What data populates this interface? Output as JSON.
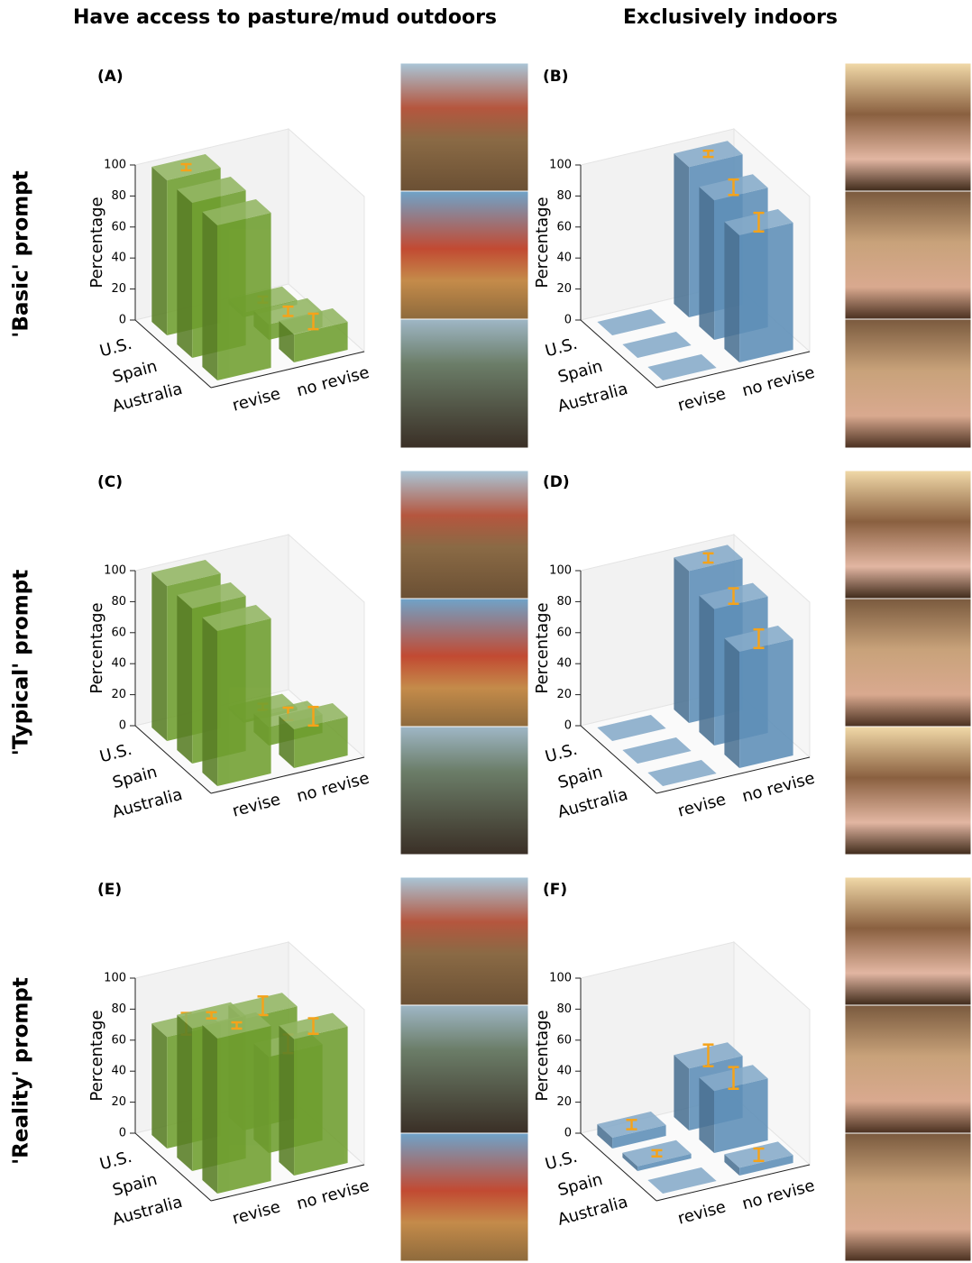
{
  "column_titles": [
    "Have access to pasture/mud outdoors",
    "Exclusively indoors"
  ],
  "row_titles": [
    "'Basic' prompt",
    "'Typical' prompt",
    "'Reality' prompt"
  ],
  "chart_data": [
    {
      "type": "bar3d",
      "title": "(A)",
      "ylabel": "Percentage",
      "color": "#6f9e2f",
      "ylim": [
        0,
        100
      ],
      "yticks": [
        0,
        20,
        40,
        60,
        80,
        100
      ],
      "categories": [
        "revise",
        "no revise"
      ],
      "series": [
        {
          "name": "U.S.",
          "values": [
            100,
            3
          ],
          "errors": [
            2,
            2
          ]
        },
        {
          "name": "Spain",
          "values": [
            100,
            10
          ],
          "errors": [
            null,
            3
          ]
        },
        {
          "name": "Australia",
          "values": [
            100,
            18
          ],
          "errors": [
            null,
            5
          ]
        }
      ]
    },
    {
      "type": "bar3d",
      "title": "(B)",
      "ylabel": "Percentage",
      "color": "#5e8fb8",
      "ylim": [
        0,
        100
      ],
      "yticks": [
        0,
        20,
        40,
        60,
        80,
        100
      ],
      "categories": [
        "revise",
        "no revise"
      ],
      "series": [
        {
          "name": "U.S.",
          "values": [
            0,
            97
          ],
          "errors": [
            null,
            2
          ]
        },
        {
          "name": "Spain",
          "values": [
            0,
            90
          ],
          "errors": [
            null,
            5
          ]
        },
        {
          "name": "Australia",
          "values": [
            0,
            82
          ],
          "errors": [
            null,
            6
          ]
        }
      ]
    },
    {
      "type": "bar3d",
      "title": "(C)",
      "ylabel": "Percentage",
      "color": "#6f9e2f",
      "ylim": [
        0,
        100
      ],
      "yticks": [
        0,
        20,
        40,
        60,
        80,
        100
      ],
      "categories": [
        "revise",
        "no revise"
      ],
      "series": [
        {
          "name": "U.S.",
          "values": [
            100,
            2
          ],
          "errors": [
            null,
            2
          ]
        },
        {
          "name": "Spain",
          "values": [
            100,
            12
          ],
          "errors": [
            null,
            4
          ]
        },
        {
          "name": "Australia",
          "values": [
            100,
            25
          ],
          "errors": [
            null,
            6
          ]
        }
      ]
    },
    {
      "type": "bar3d",
      "title": "(D)",
      "ylabel": "Percentage",
      "color": "#5e8fb8",
      "ylim": [
        0,
        100
      ],
      "yticks": [
        0,
        20,
        40,
        60,
        80,
        100
      ],
      "categories": [
        "revise",
        "no revise"
      ],
      "series": [
        {
          "name": "U.S.",
          "values": [
            0,
            98
          ],
          "errors": [
            null,
            3
          ]
        },
        {
          "name": "Spain",
          "values": [
            0,
            88
          ],
          "errors": [
            null,
            5
          ]
        },
        {
          "name": "Australia",
          "values": [
            0,
            75
          ],
          "errors": [
            null,
            6
          ]
        }
      ]
    },
    {
      "type": "bar3d",
      "title": "(E)",
      "ylabel": "Percentage",
      "color": "#6f9e2f",
      "ylim": [
        0,
        100
      ],
      "yticks": [
        0,
        20,
        40,
        60,
        80,
        100
      ],
      "categories": [
        "revise",
        "no revise"
      ],
      "series": [
        {
          "name": "U.S.",
          "values": [
            72,
            72
          ],
          "errors": [
            7,
            6
          ]
        },
        {
          "name": "Spain",
          "values": [
            92,
            62
          ],
          "errors": [
            2,
            6
          ]
        },
        {
          "name": "Australia",
          "values": [
            100,
            88
          ],
          "errors": [
            2,
            5
          ]
        }
      ]
    },
    {
      "type": "bar3d",
      "title": "(F)",
      "ylabel": "Percentage",
      "color": "#5e8fb8",
      "ylim": [
        0,
        100
      ],
      "yticks": [
        0,
        20,
        40,
        60,
        80,
        100
      ],
      "categories": [
        "revise",
        "no revise"
      ],
      "series": [
        {
          "name": "U.S.",
          "values": [
            7,
            40
          ],
          "errors": [
            3,
            7
          ]
        },
        {
          "name": "Spain",
          "values": [
            3,
            40
          ],
          "errors": [
            2,
            7
          ]
        },
        {
          "name": "Australia",
          "values": [
            0,
            5
          ],
          "errors": [
            null,
            4
          ]
        }
      ]
    }
  ]
}
